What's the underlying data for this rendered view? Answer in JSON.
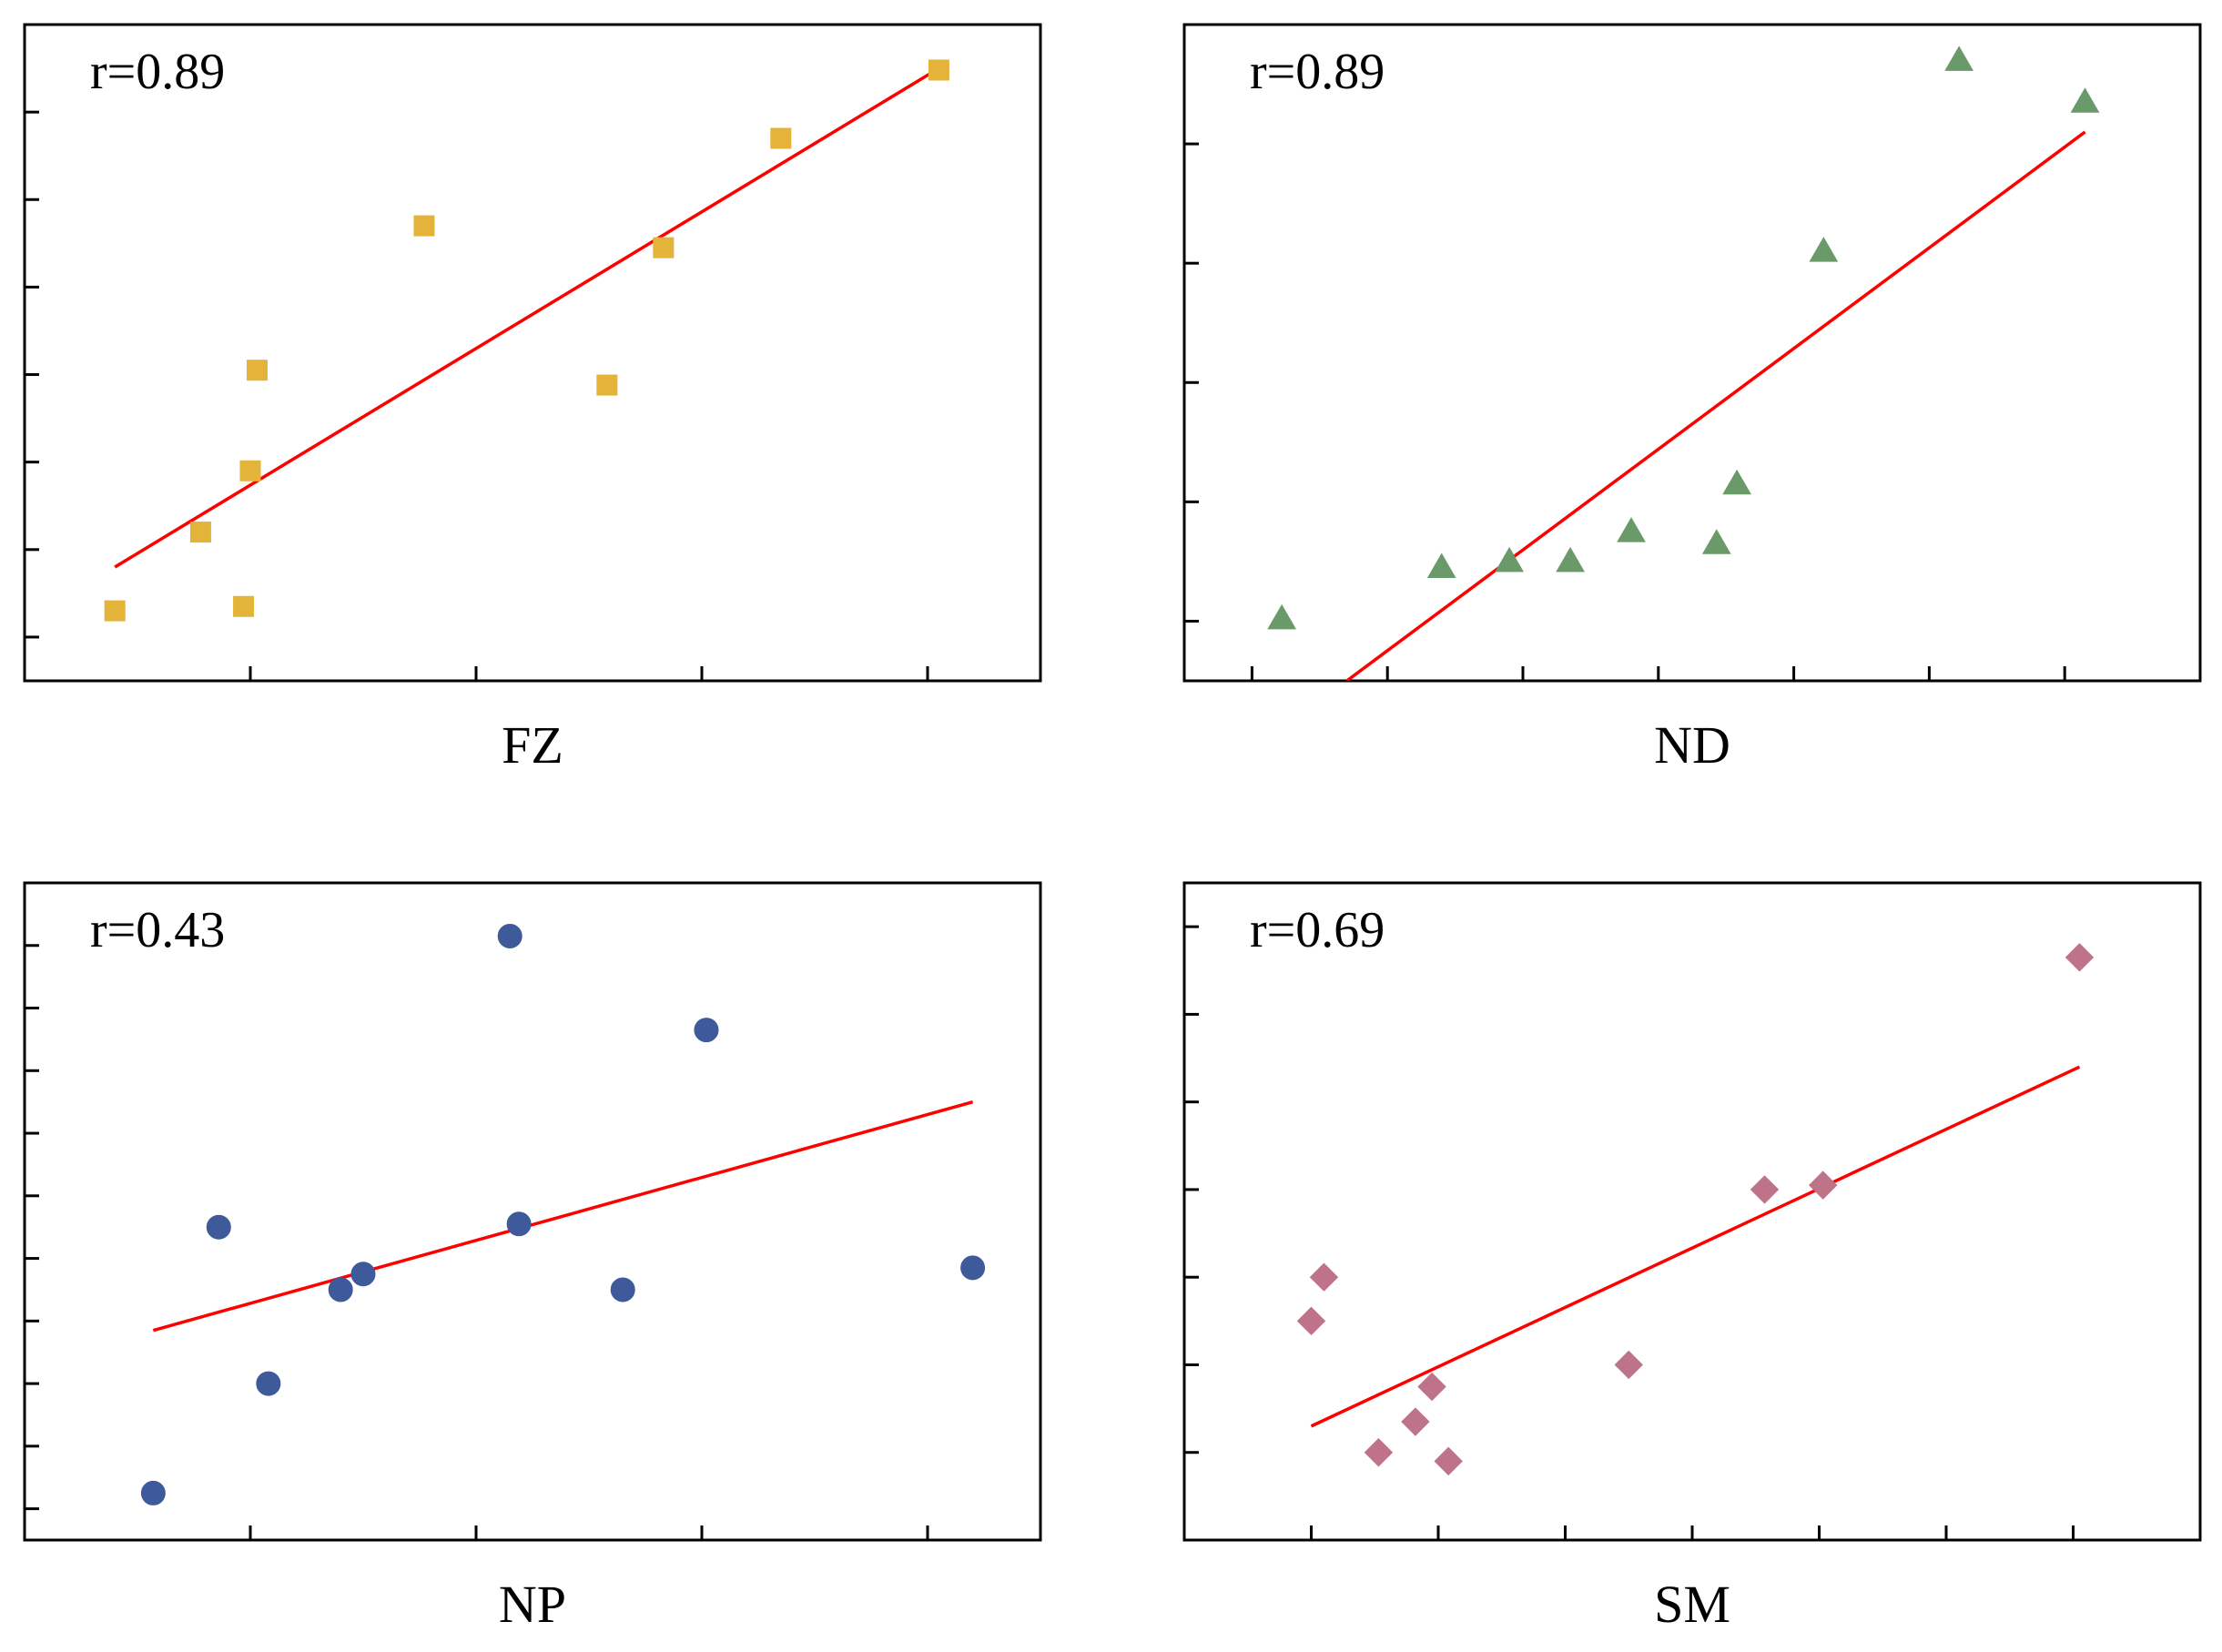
{
  "chart_data": [
    {
      "type": "scatter",
      "xlabel": "FZ",
      "annotation": "r=0.89",
      "marker": "square",
      "color": "#E3B33A",
      "xlim": [
        0,
        4.5
      ],
      "ylim": [
        0,
        7.5
      ],
      "xticks": [
        1,
        2,
        3,
        4
      ],
      "yticks": [
        0.5,
        1.5,
        2.5,
        3.5,
        4.5,
        5.5,
        6.5
      ],
      "points": [
        {
          "x": 0.4,
          "y": 0.8
        },
        {
          "x": 0.78,
          "y": 1.7
        },
        {
          "x": 0.97,
          "y": 0.85
        },
        {
          "x": 1.0,
          "y": 2.4
        },
        {
          "x": 1.03,
          "y": 3.55
        },
        {
          "x": 1.77,
          "y": 5.2
        },
        {
          "x": 2.58,
          "y": 3.38
        },
        {
          "x": 2.83,
          "y": 4.95
        },
        {
          "x": 3.35,
          "y": 6.2
        },
        {
          "x": 4.05,
          "y": 6.98
        }
      ],
      "fit": {
        "x": [
          0.4,
          4.05
        ],
        "y": [
          1.3,
          7.0
        ]
      }
    },
    {
      "type": "scatter",
      "xlabel": "ND",
      "annotation": "r=0.89",
      "marker": "triangle",
      "color": "#6A9A6A",
      "xlim": [
        0,
        7.5
      ],
      "ylim": [
        0,
        5.5
      ],
      "xticks": [
        0.5,
        1.5,
        2.5,
        3.5,
        4.5,
        5.5,
        6.5
      ],
      "yticks": [
        0.5,
        1.5,
        2.5,
        3.5,
        4.5
      ],
      "points": [
        {
          "x": 0.72,
          "y": 0.52
        },
        {
          "x": 1.9,
          "y": 0.95
        },
        {
          "x": 2.4,
          "y": 1.0
        },
        {
          "x": 2.85,
          "y": 1.0
        },
        {
          "x": 3.3,
          "y": 1.25
        },
        {
          "x": 3.93,
          "y": 1.15
        },
        {
          "x": 4.08,
          "y": 1.65
        },
        {
          "x": 4.72,
          "y": 3.6
        },
        {
          "x": 5.72,
          "y": 5.2
        },
        {
          "x": 6.65,
          "y": 4.85
        }
      ],
      "fit": {
        "x": [
          1.2,
          6.65
        ],
        "y": [
          0.0,
          4.6
        ]
      }
    },
    {
      "type": "scatter",
      "xlabel": "NP",
      "annotation": "r=0.43",
      "marker": "circle",
      "color": "#3F5A9A",
      "xlim": [
        0,
        4.5
      ],
      "ylim": [
        0,
        10.5
      ],
      "xticks": [
        1,
        2,
        3,
        4
      ],
      "yticks": [
        0.5,
        1.5,
        2.5,
        3.5,
        4.5,
        5.5,
        6.5,
        7.5,
        8.5,
        9.5
      ],
      "points": [
        {
          "x": 0.57,
          "y": 0.75
        },
        {
          "x": 0.86,
          "y": 5.0
        },
        {
          "x": 1.08,
          "y": 2.5
        },
        {
          "x": 1.4,
          "y": 4.0
        },
        {
          "x": 1.5,
          "y": 4.25
        },
        {
          "x": 2.15,
          "y": 9.65
        },
        {
          "x": 2.19,
          "y": 5.05
        },
        {
          "x": 2.65,
          "y": 4.0
        },
        {
          "x": 3.02,
          "y": 8.15
        },
        {
          "x": 4.2,
          "y": 4.35
        }
      ],
      "fit": {
        "x": [
          0.57,
          4.2
        ],
        "y": [
          3.35,
          7.0
        ]
      }
    },
    {
      "type": "scatter",
      "xlabel": "SM",
      "annotation": "r=0.69",
      "marker": "diamond",
      "color": "#BE7388",
      "xlim": [
        0,
        8
      ],
      "ylim": [
        0,
        7.5
      ],
      "xticks": [
        1,
        2,
        3,
        4,
        5,
        6,
        7
      ],
      "yticks": [
        1,
        2,
        3,
        4,
        5,
        6,
        7
      ],
      "points": [
        {
          "x": 1.0,
          "y": 2.5
        },
        {
          "x": 1.1,
          "y": 3.0
        },
        {
          "x": 1.53,
          "y": 1.0
        },
        {
          "x": 1.82,
          "y": 1.35
        },
        {
          "x": 1.95,
          "y": 1.75
        },
        {
          "x": 2.08,
          "y": 0.9
        },
        {
          "x": 3.5,
          "y": 2.0
        },
        {
          "x": 4.57,
          "y": 4.0
        },
        {
          "x": 5.03,
          "y": 4.05
        },
        {
          "x": 7.05,
          "y": 6.65
        }
      ],
      "fit": {
        "x": [
          1.0,
          7.05
        ],
        "y": [
          1.3,
          5.4
        ]
      }
    }
  ]
}
